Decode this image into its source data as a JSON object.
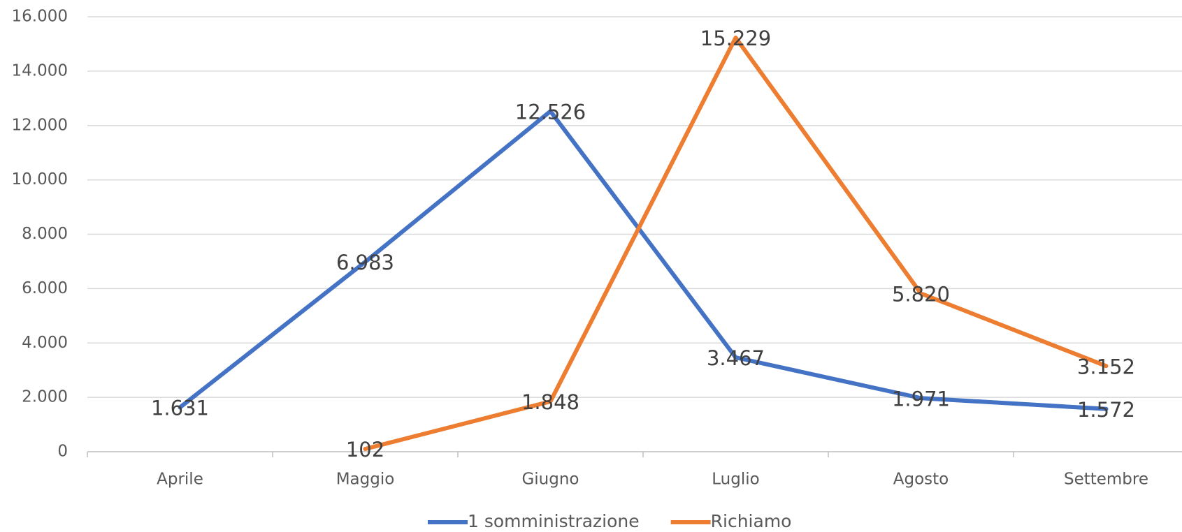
{
  "chart_data": {
    "type": "line",
    "categories": [
      "Aprile",
      "Maggio",
      "Giugno",
      "Luglio",
      "Agosto",
      "Settembre"
    ],
    "series": [
      {
        "name": "1 somministrazione",
        "color": "#4472c4",
        "values": [
          1631,
          6983,
          12526,
          3467,
          1971,
          1572
        ],
        "value_labels": [
          "1.631",
          "6.983",
          "12.526",
          "3.467",
          "1.971",
          "1.572"
        ]
      },
      {
        "name": "Richiamo",
        "color": "#ed7d31",
        "values": [
          null,
          102,
          1848,
          15229,
          5820,
          3152
        ],
        "value_labels": [
          null,
          "102",
          "1.848",
          "15.229",
          "5.820",
          "3.152"
        ]
      }
    ],
    "ylim": [
      0,
      16000
    ],
    "yticks": [
      0,
      {
        "value": 2000,
        "label": "2.000"
      },
      {
        "value": 4000,
        "label": "4.000"
      },
      {
        "value": 6000,
        "label": "6.000"
      },
      {
        "value": 8000,
        "label": "8.000"
      },
      {
        "value": 10000,
        "label": "10.000"
      },
      {
        "value": 12000,
        "label": "12.000"
      },
      {
        "value": 14000,
        "label": "14.000"
      },
      {
        "value": 16000,
        "label": "16.000"
      }
    ],
    "grid": true,
    "legend": "bottom"
  }
}
